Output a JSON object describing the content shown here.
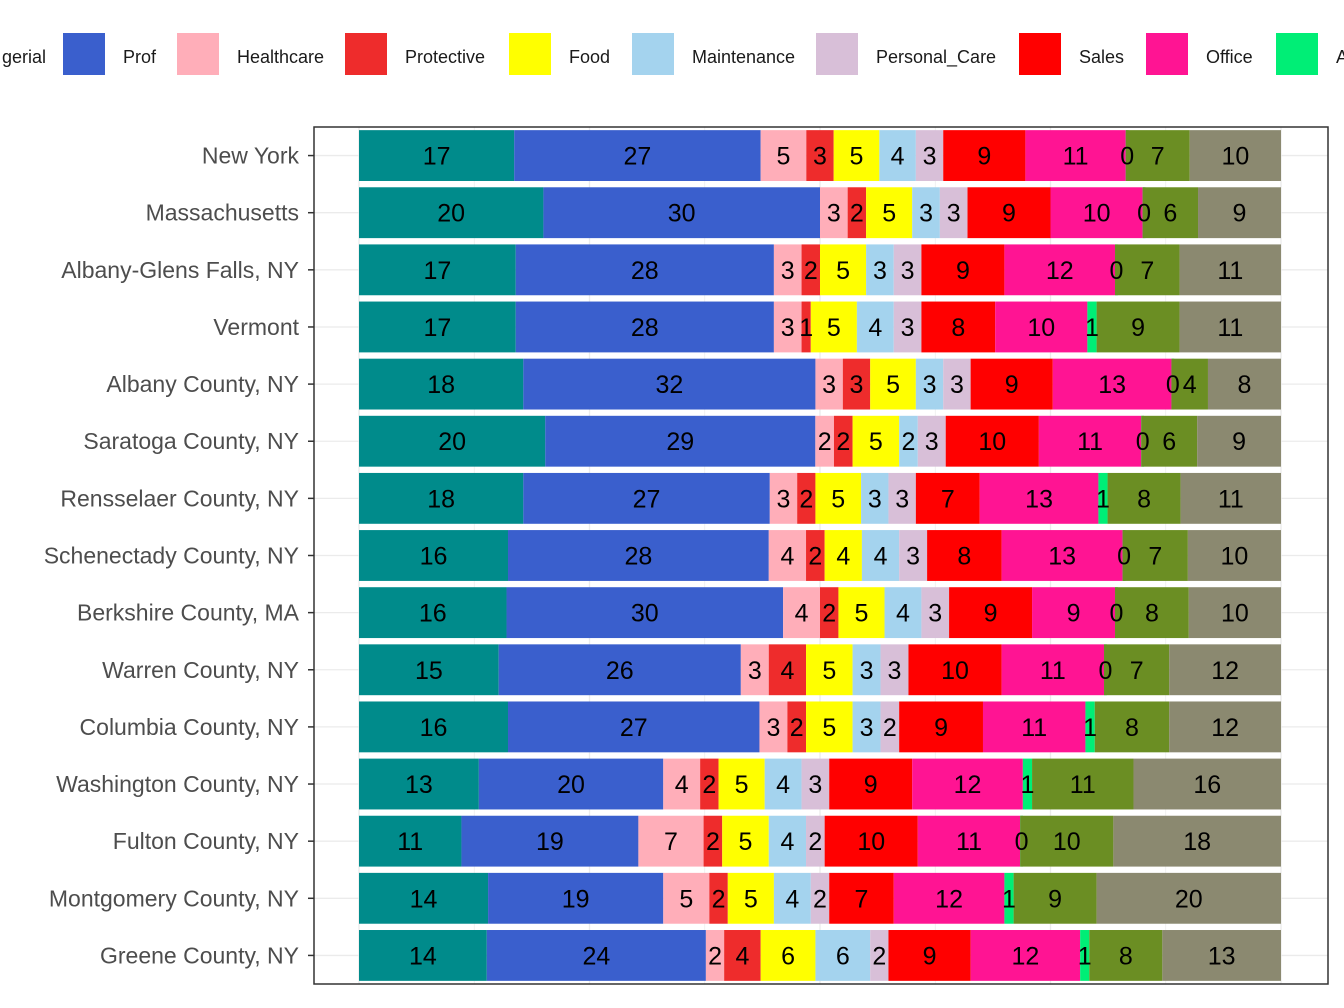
{
  "chart_data": {
    "type": "bar",
    "orientation": "horizontal",
    "stacked": true,
    "legend_position": "top",
    "grid": true,
    "categories": [
      "New York",
      "Massachusetts",
      "Albany-Glens Falls, NY",
      "Vermont",
      "Albany County, NY",
      "Saratoga County, NY",
      "Rensselaer County, NY",
      "Schenectady County, NY",
      "Berkshire County, MA",
      "Warren County, NY",
      "Columbia County, NY",
      "Washington County, NY",
      "Fulton County, NY",
      "Montgomery County, NY",
      "Greene County, NY"
    ],
    "series": [
      {
        "label": "",
        "color": "#008B8B",
        "values": [
          17,
          20,
          17,
          17,
          18,
          20,
          18,
          16,
          16,
          15,
          16,
          13,
          11,
          14,
          14
        ]
      },
      {
        "label": "Prof",
        "color": "#3A5FCD",
        "values": [
          27,
          30,
          28,
          28,
          32,
          29,
          27,
          28,
          30,
          26,
          27,
          20,
          19,
          19,
          24
        ]
      },
      {
        "label": "Healthcare",
        "color": "#FFAEB9",
        "values": [
          5,
          3,
          3,
          3,
          3,
          2,
          3,
          4,
          4,
          3,
          3,
          4,
          7,
          5,
          2
        ]
      },
      {
        "label": "Protective",
        "color": "#EE2C2C",
        "values": [
          3,
          2,
          2,
          1,
          3,
          2,
          2,
          2,
          2,
          4,
          2,
          2,
          2,
          2,
          4
        ]
      },
      {
        "label": "Food",
        "color": "#FFFF00",
        "values": [
          5,
          5,
          5,
          5,
          5,
          5,
          5,
          4,
          5,
          5,
          5,
          5,
          5,
          5,
          6
        ]
      },
      {
        "label": "Maintenance",
        "color": "#A4D3EE",
        "values": [
          4,
          3,
          3,
          4,
          3,
          2,
          3,
          4,
          4,
          3,
          3,
          4,
          4,
          4,
          6
        ]
      },
      {
        "label": "Personal_Care",
        "color": "#D8BFD8",
        "values": [
          3,
          3,
          3,
          3,
          3,
          3,
          3,
          3,
          3,
          3,
          2,
          3,
          2,
          2,
          2
        ]
      },
      {
        "label": "Sales",
        "color": "#FF0000",
        "values": [
          9,
          9,
          9,
          8,
          9,
          10,
          7,
          8,
          9,
          10,
          9,
          9,
          10,
          7,
          9
        ]
      },
      {
        "label": "Office",
        "color": "#FF1493",
        "values": [
          11,
          10,
          12,
          10,
          13,
          11,
          13,
          13,
          9,
          11,
          11,
          12,
          11,
          12,
          12
        ]
      },
      {
        "label": "",
        "color": "#00EE76",
        "values": [
          0,
          0,
          0,
          1,
          0,
          0,
          1,
          0,
          0,
          0,
          1,
          1,
          0,
          1,
          1
        ]
      },
      {
        "label": "",
        "color": "#6B8E23",
        "values": [
          7,
          6,
          7,
          9,
          4,
          6,
          8,
          7,
          8,
          7,
          8,
          11,
          10,
          9,
          8
        ]
      },
      {
        "label": "",
        "color": "#8B8970",
        "values": [
          10,
          9,
          11,
          11,
          8,
          9,
          11,
          10,
          10,
          12,
          12,
          16,
          18,
          20,
          13
        ]
      }
    ],
    "legend_visible": {
      "cut_left_text": "gerial",
      "cut_right_text": "A"
    },
    "xlim": [
      0,
      100
    ]
  }
}
